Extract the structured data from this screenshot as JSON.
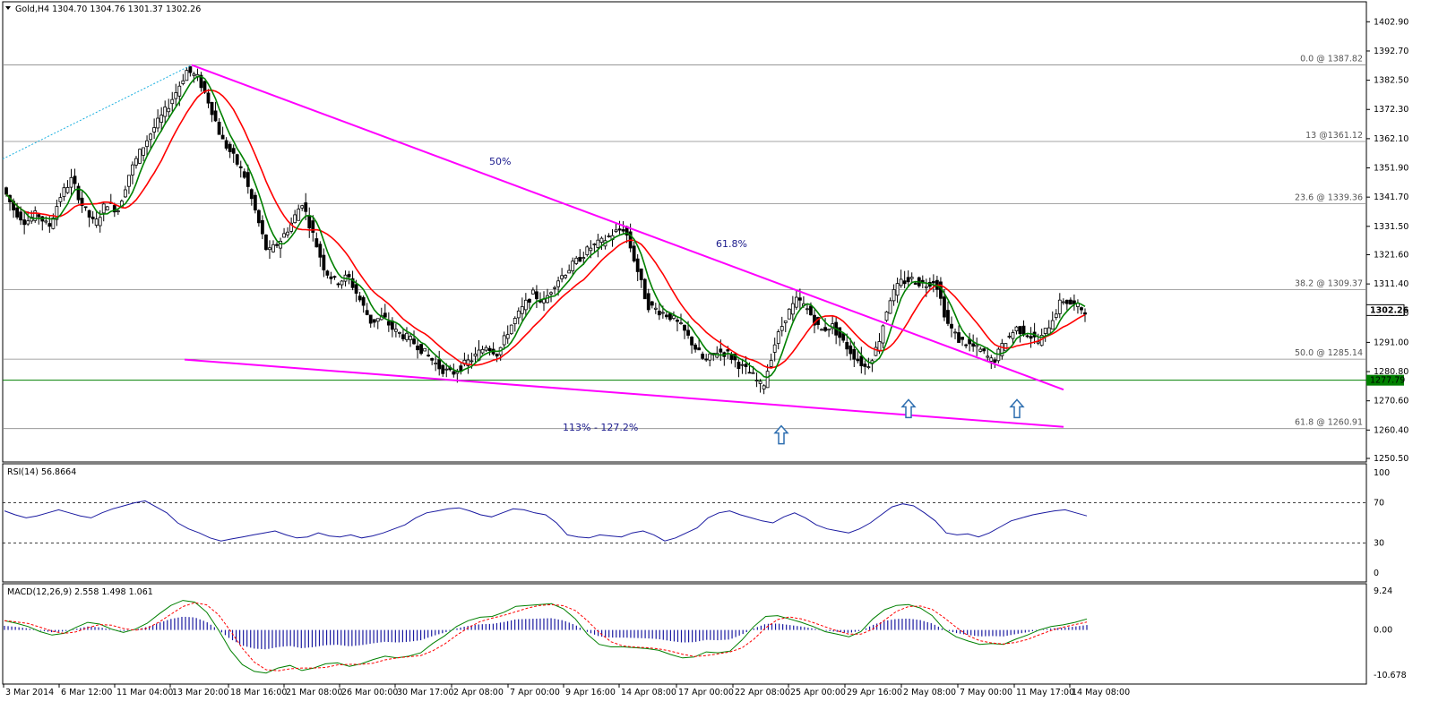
{
  "chart_data": [
    {
      "type": "candlestick",
      "title": "Gold,H4  1304.70 1304.76 1301.37 1302.26",
      "symbol": "Gold,H4",
      "ohlc": {
        "open": 1304.7,
        "high": 1304.76,
        "low": 1301.37,
        "close": 1302.26
      },
      "current_price": "1302.26",
      "marked_price": "1277.79",
      "ylim": [
        1250.5,
        1408.0
      ],
      "y_ticks": [
        "1402.90",
        "1392.70",
        "1382.50",
        "1372.30",
        "1362.10",
        "1351.90",
        "1341.70",
        "1331.50",
        "1321.60",
        "1311.40",
        "1301.20",
        "1291.00",
        "1280.80",
        "1270.60",
        "1260.40",
        "1250.50"
      ],
      "x_ticks": [
        "3 Mar 2014",
        "6 Mar 12:00",
        "11 Mar 04:00",
        "13 Mar 20:00",
        "18 Mar 16:00",
        "21 Mar 08:00",
        "26 Mar 00:00",
        "30 Mar 17:00",
        "2 Apr 08:00",
        "7 Apr 00:00",
        "9 Apr 16:00",
        "14 Apr 08:00",
        "17 Apr 00:00",
        "22 Apr 08:00",
        "25 Apr 00:00",
        "29 Apr 16:00",
        "2 May 08:00",
        "7 May 00:00",
        "11 May 17:00",
        "14 May 08:00"
      ],
      "fibonacci_levels": [
        {
          "label": "0.0 @ 1387.82",
          "value": 1387.82
        },
        {
          "label": "13 @1361.12",
          "value": 1361.12
        },
        {
          "label": "23.6 @ 1339.36",
          "value": 1339.36
        },
        {
          "label": "38.2 @ 1309.37",
          "value": 1309.37
        },
        {
          "label": "50.0 @ 1285.14",
          "value": 1285.14
        },
        {
          "label": "61.8 @ 1260.91",
          "value": 1260.91
        }
      ],
      "support_line": 1277.79,
      "annotations": [
        "50%",
        "61.8%",
        "113% - 127.2%"
      ],
      "price_path": [
        [
          0,
          1345
        ],
        [
          2,
          1337
        ],
        [
          4,
          1333
        ],
        [
          6,
          1336
        ],
        [
          8,
          1331
        ],
        [
          10,
          1342
        ],
        [
          12,
          1348
        ],
        [
          14,
          1338
        ],
        [
          16,
          1332
        ],
        [
          18,
          1340
        ],
        [
          20,
          1337
        ],
        [
          22,
          1350
        ],
        [
          24,
          1358
        ],
        [
          26,
          1365
        ],
        [
          28,
          1371
        ],
        [
          30,
          1378
        ],
        [
          32,
          1386
        ],
        [
          34,
          1383
        ],
        [
          36,
          1374
        ],
        [
          38,
          1362
        ],
        [
          40,
          1356
        ],
        [
          42,
          1349
        ],
        [
          44,
          1336
        ],
        [
          46,
          1322
        ],
        [
          48,
          1326
        ],
        [
          50,
          1332
        ],
        [
          52,
          1340
        ],
        [
          54,
          1328
        ],
        [
          56,
          1316
        ],
        [
          58,
          1312
        ],
        [
          60,
          1314
        ],
        [
          62,
          1306
        ],
        [
          64,
          1298
        ],
        [
          66,
          1300
        ],
        [
          68,
          1295
        ],
        [
          70,
          1293
        ],
        [
          72,
          1290
        ],
        [
          74,
          1286
        ],
        [
          76,
          1282
        ],
        [
          78,
          1280
        ],
        [
          80,
          1283
        ],
        [
          82,
          1286
        ],
        [
          84,
          1290
        ],
        [
          86,
          1287
        ],
        [
          88,
          1296
        ],
        [
          90,
          1302
        ],
        [
          92,
          1308
        ],
        [
          94,
          1305
        ],
        [
          96,
          1312
        ],
        [
          98,
          1316
        ],
        [
          100,
          1320
        ],
        [
          102,
          1324
        ],
        [
          104,
          1326
        ],
        [
          106,
          1329
        ],
        [
          108,
          1331
        ],
        [
          110,
          1318
        ],
        [
          112,
          1304
        ],
        [
          114,
          1302
        ],
        [
          116,
          1300
        ],
        [
          118,
          1296
        ],
        [
          120,
          1290
        ],
        [
          122,
          1284
        ],
        [
          124,
          1288
        ],
        [
          126,
          1287
        ],
        [
          128,
          1283
        ],
        [
          130,
          1280
        ],
        [
          132,
          1275
        ],
        [
          134,
          1290
        ],
        [
          136,
          1300
        ],
        [
          138,
          1306
        ],
        [
          140,
          1302
        ],
        [
          142,
          1295
        ],
        [
          144,
          1297
        ],
        [
          146,
          1291
        ],
        [
          148,
          1286
        ],
        [
          150,
          1282
        ],
        [
          152,
          1290
        ],
        [
          154,
          1306
        ],
        [
          156,
          1312
        ],
        [
          158,
          1313
        ],
        [
          160,
          1311
        ],
        [
          162,
          1313
        ],
        [
          164,
          1298
        ],
        [
          166,
          1292
        ],
        [
          168,
          1290
        ],
        [
          170,
          1288
        ],
        [
          172,
          1284
        ],
        [
          174,
          1291
        ],
        [
          176,
          1296
        ],
        [
          178,
          1294
        ],
        [
          180,
          1291
        ],
        [
          182,
          1298
        ],
        [
          184,
          1306
        ],
        [
          186,
          1304
        ],
        [
          188,
          1302.26
        ]
      ],
      "ma_red": {
        "name": "",
        "color": "#ff0000"
      },
      "ma_green": {
        "name": "",
        "color": "#008000"
      }
    },
    {
      "type": "line",
      "title": "RSI(14) 56.8664",
      "ylim": [
        0,
        100
      ],
      "y_ticks": [
        "100",
        "70",
        "30",
        "0"
      ],
      "levels": [
        70,
        30
      ],
      "values": [
        62,
        58,
        55,
        57,
        60,
        63,
        60,
        57,
        55,
        60,
        64,
        67,
        70,
        72,
        66,
        60,
        50,
        44,
        40,
        35,
        32,
        34,
        36,
        38,
        40,
        42,
        38,
        35,
        36,
        40,
        37,
        36,
        38,
        35,
        37,
        40,
        44,
        48,
        55,
        60,
        62,
        64,
        65,
        62,
        58,
        56,
        60,
        64,
        63,
        60,
        58,
        50,
        38,
        36,
        35,
        38,
        37,
        36,
        40,
        42,
        38,
        32,
        35,
        40,
        45,
        55,
        60,
        62,
        58,
        55,
        52,
        50,
        56,
        60,
        55,
        48,
        44,
        42,
        40,
        44,
        50,
        58,
        66,
        69,
        67,
        60,
        52,
        40,
        38,
        39,
        36,
        40,
        46,
        52,
        55,
        58,
        60,
        62,
        63,
        60,
        57
      ],
      "color": "#1a1aa0"
    },
    {
      "type": "bar+line",
      "title": "MACD(12,26,9) 2.558 1.498 1.061",
      "ylim": [
        -10.678,
        9.24
      ],
      "y_ticks": [
        "9.24",
        "0.00",
        "-10.678"
      ],
      "histogram": [
        2.2,
        1.6,
        0.8,
        -0.4,
        -1.2,
        -0.8,
        0.6,
        1.8,
        1.4,
        0.2,
        -0.6,
        0.2,
        1.6,
        3.8,
        5.8,
        7.0,
        6.6,
        4.2,
        0.0,
        -4.8,
        -8.2,
        -9.8,
        -10.2,
        -9.0,
        -8.4,
        -9.6,
        -9.0,
        -8.0,
        -7.8,
        -8.6,
        -8.0,
        -7.0,
        -6.2,
        -6.6,
        -6.2,
        -5.4,
        -3.2,
        -1.4,
        0.8,
        2.2,
        3.0,
        3.2,
        4.2,
        5.6,
        5.8,
        6.0,
        6.2,
        5.0,
        2.6,
        -1.0,
        -3.4,
        -4.0,
        -4.0,
        -4.2,
        -4.4,
        -4.8,
        -5.8,
        -6.6,
        -6.4,
        -5.2,
        -5.4,
        -5.0,
        -2.4,
        0.8,
        3.2,
        3.4,
        2.6,
        1.8,
        0.8,
        -0.4,
        -1.0,
        -1.6,
        -0.4,
        2.6,
        4.8,
        5.8,
        6.0,
        5.2,
        3.4,
        0.2,
        -1.6,
        -2.6,
        -3.4,
        -3.2,
        -3.4,
        -2.2,
        -1.2,
        0.0,
        0.8,
        1.2,
        1.8,
        2.6
      ],
      "series": [
        {
          "name": "",
          "color": "#008000"
        },
        {
          "name": "",
          "color": "#ff0000"
        }
      ]
    }
  ],
  "colors": {
    "trendline": "#ff00ff",
    "support": "#008000",
    "fib": "#888888",
    "arrow": "#2f6fb0",
    "price_box": "#ffffff"
  }
}
